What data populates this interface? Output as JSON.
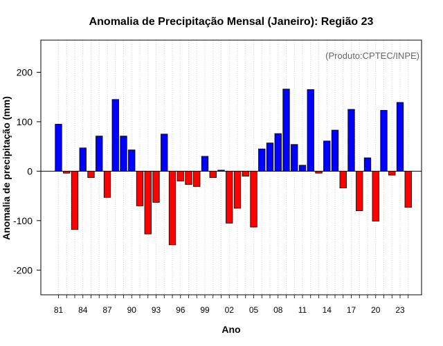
{
  "chart_data": {
    "type": "bar",
    "title": "Anomalia de Precipitação Mensal (Janeiro): Região 23",
    "xlabel": "Ano",
    "ylabel": "Anomalia de precipitação (mm)",
    "credit": "(Produto:CPTEC/INPE)",
    "ylim": [
      -250,
      265
    ],
    "yticks": [
      -200,
      -100,
      0,
      100,
      200
    ],
    "grid": true,
    "positive_color": "#0000ff",
    "negative_color": "#ff0000",
    "categories": [
      "1981",
      "1982",
      "1983",
      "1984",
      "1985",
      "1986",
      "1987",
      "1988",
      "1989",
      "1990",
      "1991",
      "1992",
      "1993",
      "1994",
      "1995",
      "1996",
      "1997",
      "1998",
      "1999",
      "2000",
      "2001",
      "2002",
      "2003",
      "2004",
      "2005",
      "2006",
      "2007",
      "2008",
      "2009",
      "2010",
      "2011",
      "2012",
      "2013",
      "2014",
      "2015",
      "2016",
      "2017",
      "2018",
      "2019",
      "2020",
      "2021",
      "2022",
      "2023",
      "2024"
    ],
    "values": [
      95,
      -4,
      -118,
      47,
      -13,
      71,
      -53,
      145,
      71,
      43,
      -70,
      -127,
      -63,
      75,
      -149,
      -20,
      -27,
      -31,
      30,
      -13,
      2,
      -105,
      -75,
      -10,
      -113,
      45,
      57,
      76,
      166,
      54,
      12,
      165,
      -4,
      61,
      83,
      -34,
      125,
      -80,
      27,
      -101,
      123,
      -8,
      139,
      -73
    ],
    "xtick_labels": [
      {
        "index": 0,
        "label": "81"
      },
      {
        "index": 3,
        "label": "84"
      },
      {
        "index": 6,
        "label": "87"
      },
      {
        "index": 9,
        "label": "90"
      },
      {
        "index": 12,
        "label": "93"
      },
      {
        "index": 15,
        "label": "96"
      },
      {
        "index": 18,
        "label": "99"
      },
      {
        "index": 21,
        "label": "02"
      },
      {
        "index": 24,
        "label": "05"
      },
      {
        "index": 27,
        "label": "08"
      },
      {
        "index": 30,
        "label": "11"
      },
      {
        "index": 33,
        "label": "14"
      },
      {
        "index": 36,
        "label": "17"
      },
      {
        "index": 39,
        "label": "20"
      },
      {
        "index": 42,
        "label": "23"
      }
    ]
  }
}
